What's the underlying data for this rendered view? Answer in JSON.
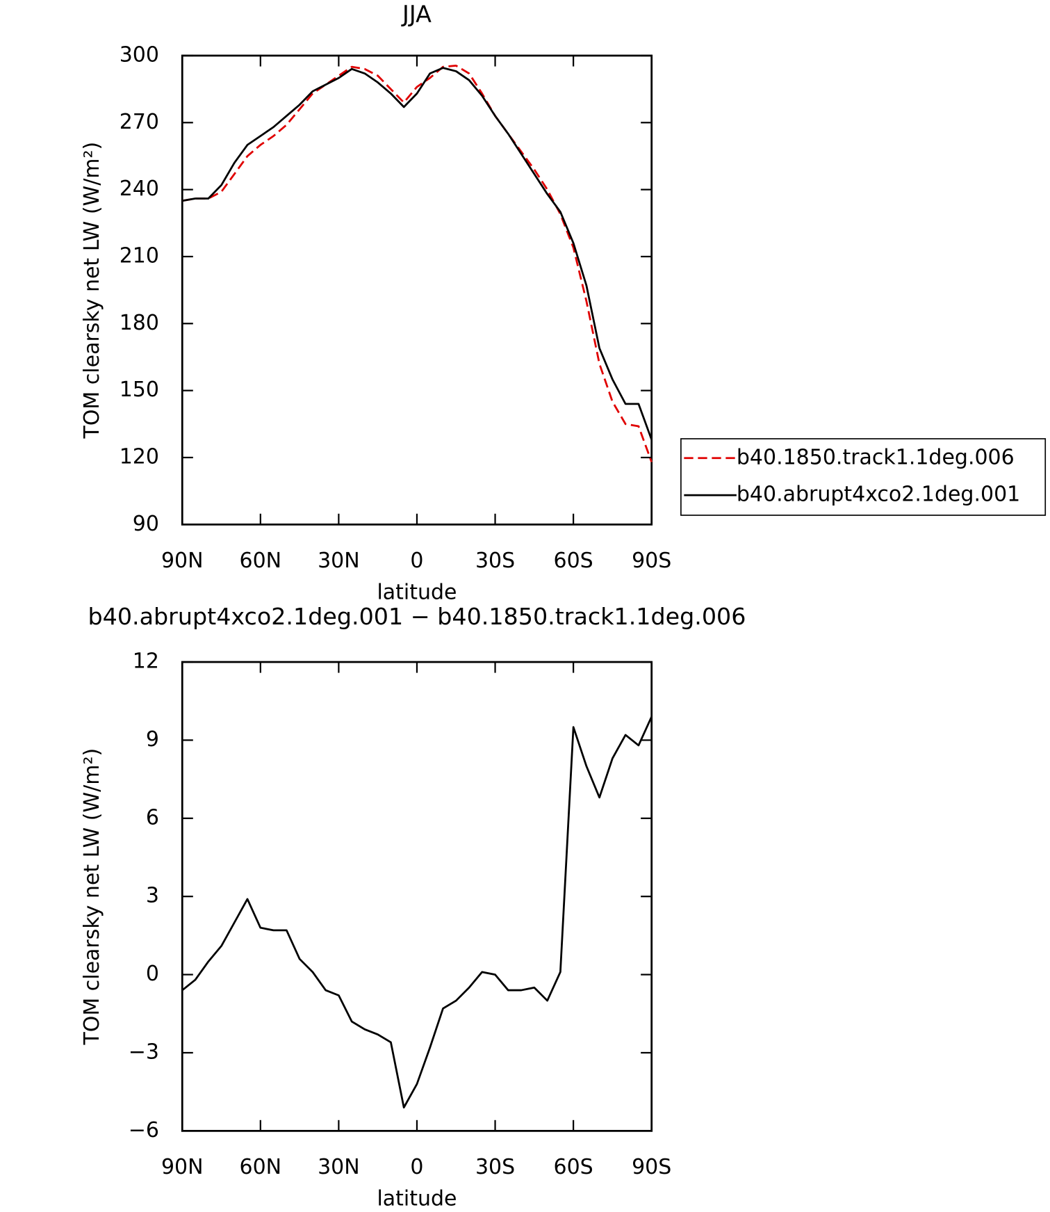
{
  "chart_data": [
    {
      "type": "line",
      "title": "JJA",
      "xlabel": "latitude",
      "ylabel": "TOM clearsky net LW (W/m²)",
      "x": [
        90,
        85,
        80,
        75,
        70,
        65,
        60,
        55,
        50,
        45,
        40,
        35,
        30,
        25,
        20,
        15,
        10,
        5,
        0,
        -5,
        -10,
        -15,
        -20,
        -25,
        -30,
        -35,
        -40,
        -45,
        -50,
        -55,
        -60,
        -65,
        -70,
        -75,
        -80,
        -85,
        -90
      ],
      "xlim": [
        90,
        -90
      ],
      "xticks": [
        {
          "value": 90,
          "label": "90N"
        },
        {
          "value": 60,
          "label": "60N"
        },
        {
          "value": 30,
          "label": "30N"
        },
        0,
        {
          "value": -30,
          "label": "30S"
        },
        {
          "value": -60,
          "label": "60S"
        },
        {
          "value": -90,
          "label": "90S"
        }
      ],
      "ylim": [
        90,
        300
      ],
      "yticks": [
        90,
        120,
        150,
        180,
        210,
        240,
        270,
        300
      ],
      "legend": "right",
      "series": [
        {
          "name": "b40.1850.track1.1deg.006",
          "color": "#e00000",
          "linestyle": "dashed",
          "values": [
            235,
            236,
            236,
            239,
            247,
            255,
            260,
            264,
            269,
            276,
            283,
            287,
            291,
            295,
            294,
            291,
            285,
            279,
            286,
            290,
            295,
            295.5,
            292,
            283,
            273,
            265,
            257,
            249,
            240,
            229,
            214,
            190,
            162,
            145,
            135,
            134,
            118
          ]
        },
        {
          "name": "b40.abrupt4xco2.1deg.001",
          "color": "#000000",
          "linestyle": "solid",
          "values": [
            235,
            236,
            236,
            242,
            252,
            260,
            264,
            268,
            273,
            278,
            284,
            287,
            290,
            294,
            292,
            288,
            283,
            277,
            283,
            292,
            294.5,
            293,
            289,
            282,
            273,
            265,
            256,
            247,
            238,
            230,
            216,
            197,
            169,
            155,
            144,
            144,
            128
          ]
        }
      ]
    },
    {
      "type": "line",
      "title": "b40.abrupt4xco2.1deg.001 − b40.1850.track1.1deg.006",
      "xlabel": "latitude",
      "ylabel": "TOM clearsky net LW (W/m²)",
      "x": [
        90,
        85,
        80,
        75,
        70,
        65,
        60,
        55,
        50,
        45,
        40,
        35,
        30,
        25,
        20,
        15,
        10,
        5,
        0,
        -5,
        -10,
        -15,
        -20,
        -25,
        -30,
        -35,
        -40,
        -45,
        -50,
        -55,
        -60,
        -65,
        -70,
        -75,
        -80,
        -85,
        -90
      ],
      "xlim": [
        90,
        -90
      ],
      "xticks": [
        {
          "value": 90,
          "label": "90N"
        },
        {
          "value": 60,
          "label": "60N"
        },
        {
          "value": 30,
          "label": "30N"
        },
        0,
        {
          "value": -30,
          "label": "30S"
        },
        {
          "value": -60,
          "label": "60S"
        },
        {
          "value": -90,
          "label": "90S"
        }
      ],
      "ylim": [
        -6,
        12
      ],
      "yticks": [
        {
          "value": -6,
          "label": "−6"
        },
        {
          "value": -3,
          "label": "−3"
        },
        0,
        3,
        6,
        9,
        12
      ],
      "series": [
        {
          "color": "#000000",
          "linestyle": "solid",
          "values": [
            -0.6,
            -0.2,
            0.5,
            1.1,
            2.0,
            2.9,
            1.8,
            1.7,
            1.7,
            0.6,
            0.1,
            -0.6,
            -0.8,
            -1.8,
            -2.1,
            -2.3,
            -2.6,
            -5.1,
            -4.2,
            -2.8,
            -1.3,
            -1.0,
            -0.5,
            0.1,
            0.0,
            -0.6,
            -0.6,
            -0.5,
            -1.0,
            0.1,
            9.5,
            8.0,
            6.8,
            8.3,
            9.2,
            8.8,
            9.9
          ]
        }
      ]
    }
  ]
}
